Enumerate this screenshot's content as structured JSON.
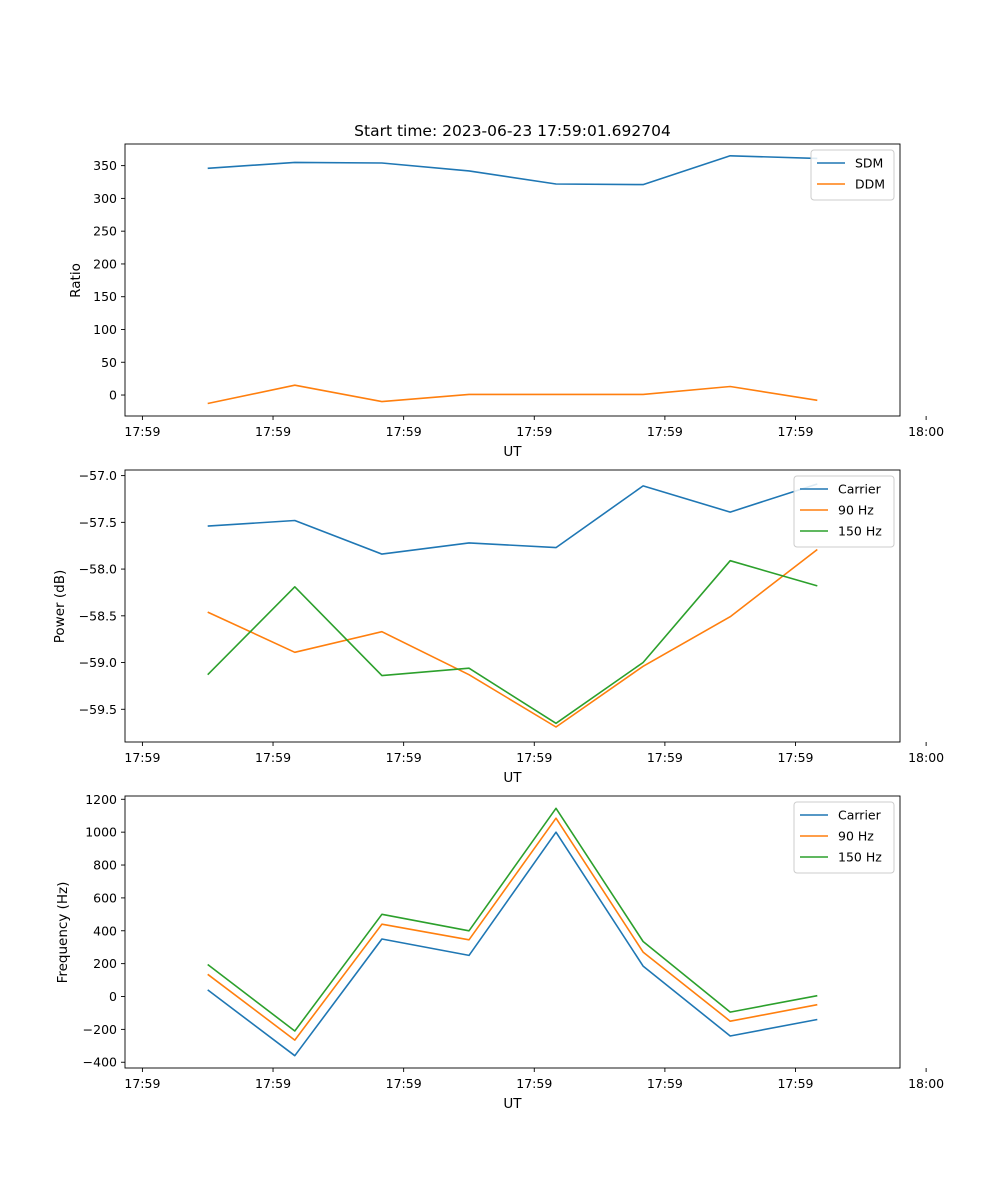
{
  "chart_data": [
    {
      "type": "line",
      "title": "Start time: 2023-06-23 17:59:01.692704",
      "xlabel": "UT",
      "ylabel": "Ratio",
      "x_tick_labels": [
        "17:59",
        "17:59",
        "17:59",
        "17:59",
        "17:59",
        "17:59",
        "18:00"
      ],
      "x_index_range": [
        -0.2,
        8.7
      ],
      "x_ticks_at_index": [
        0,
        1.5,
        3,
        4.5,
        6,
        7.5,
        9
      ],
      "x": [
        0.75,
        1.75,
        2.75,
        3.75,
        4.75,
        5.75,
        6.75,
        7.75
      ],
      "ylim": [
        -32,
        383
      ],
      "y_ticks": [
        0,
        50,
        100,
        150,
        200,
        250,
        300,
        350
      ],
      "legend": "top-right",
      "series": [
        {
          "name": "SDM",
          "color": "#1f77b4",
          "values": [
            346,
            355,
            354,
            342,
            322,
            321,
            365,
            361
          ]
        },
        {
          "name": "DDM",
          "color": "#ff7f0e",
          "values": [
            -13,
            15,
            -10,
            1,
            1,
            1,
            13,
            -8
          ]
        }
      ]
    },
    {
      "type": "line",
      "title": "",
      "xlabel": "UT",
      "ylabel": "Power (dB)",
      "x_tick_labels": [
        "17:59",
        "17:59",
        "17:59",
        "17:59",
        "17:59",
        "17:59",
        "18:00"
      ],
      "x_ticks_at_index": [
        0,
        1.5,
        3,
        4.5,
        6,
        7.5,
        9
      ],
      "x": [
        0.75,
        1.75,
        2.75,
        3.75,
        4.75,
        5.75,
        6.75,
        7.75
      ],
      "ylim": [
        -59.85,
        -56.94
      ],
      "y_ticks": [
        -59.5,
        -59.0,
        -58.5,
        -58.0,
        -57.5,
        -57.0
      ],
      "y_tick_labels": [
        "−59.5",
        "−59.0",
        "−58.5",
        "−58.0",
        "−57.5",
        "−57.0"
      ],
      "legend": "top-right",
      "series": [
        {
          "name": "Carrier",
          "color": "#1f77b4",
          "values": [
            -57.54,
            -57.48,
            -57.84,
            -57.72,
            -57.77,
            -57.11,
            -57.39,
            -57.09
          ]
        },
        {
          "name": "90 Hz",
          "color": "#ff7f0e",
          "values": [
            -58.46,
            -58.89,
            -58.67,
            -59.13,
            -59.69,
            -59.04,
            -58.51,
            -57.79
          ]
        },
        {
          "name": "150 Hz",
          "color": "#2ca02c",
          "values": [
            -59.13,
            -58.19,
            -59.14,
            -59.06,
            -59.65,
            -59.0,
            -57.91,
            -58.18
          ]
        }
      ]
    },
    {
      "type": "line",
      "title": "",
      "xlabel": "UT",
      "ylabel": "Frequency (Hz)",
      "x_tick_labels": [
        "17:59",
        "17:59",
        "17:59",
        "17:59",
        "17:59",
        "17:59",
        "18:00"
      ],
      "x_ticks_at_index": [
        0,
        1.5,
        3,
        4.5,
        6,
        7.5,
        9
      ],
      "x": [
        0.75,
        1.75,
        2.75,
        3.75,
        4.75,
        5.75,
        6.75,
        7.75
      ],
      "ylim": [
        -435,
        1220
      ],
      "y_ticks": [
        -400,
        -200,
        0,
        200,
        400,
        600,
        800,
        1000,
        1200
      ],
      "y_tick_labels": [
        "−400",
        "−200",
        "0",
        "200",
        "400",
        "600",
        "800",
        "1000",
        "1200"
      ],
      "legend": "top-right",
      "series": [
        {
          "name": "Carrier",
          "color": "#1f77b4",
          "values": [
            40,
            -360,
            350,
            250,
            1000,
            185,
            -240,
            -140
          ]
        },
        {
          "name": "90 Hz",
          "color": "#ff7f0e",
          "values": [
            135,
            -265,
            440,
            345,
            1085,
            270,
            -150,
            -50
          ]
        },
        {
          "name": "150 Hz",
          "color": "#2ca02c",
          "values": [
            195,
            -210,
            500,
            400,
            1145,
            335,
            -95,
            5
          ]
        }
      ]
    }
  ]
}
